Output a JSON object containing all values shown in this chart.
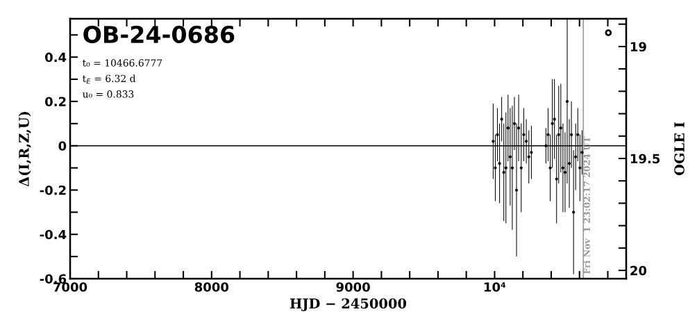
{
  "chart_data": {
    "type": "scatter",
    "title": "OB-24-0686",
    "xlabel": "HJD − 2450000",
    "ylabel": "Δ(I,R,Z,U)",
    "y2label": "OGLE I",
    "annotations": [
      "t₀ = 10466.6777",
      "t$_{E}$ = 6.32 d",
      "u₀ = 0.833",
      {
        "text": "Fri Nov  1 23:02:17 2024 UT",
        "x": 10627,
        "y": -0.58
      }
    ],
    "xlim": [
      7000,
      10930
    ],
    "ylim": [
      -0.6,
      0.573
    ],
    "y2lim": [
      20.037,
      18.876
    ],
    "xticks": [
      7000,
      {
        "value": 7200,
        "label": null
      },
      {
        "value": 7400,
        "label": null
      },
      {
        "value": 7600,
        "label": null
      },
      {
        "value": 7800,
        "label": null
      },
      8000,
      {
        "value": 8200,
        "label": null
      },
      {
        "value": 8400,
        "label": null
      },
      {
        "value": 8600,
        "label": null
      },
      {
        "value": 8800,
        "label": null
      },
      9000,
      {
        "value": 9200,
        "label": null
      },
      {
        "value": 9400,
        "label": null
      },
      {
        "value": 9600,
        "label": null
      },
      {
        "value": 9800,
        "label": null
      },
      {
        "value": 10000,
        "label": "10⁴"
      },
      {
        "value": 10200,
        "label": null
      },
      {
        "value": 10400,
        "label": null
      },
      {
        "value": 10600,
        "label": null
      },
      {
        "value": 10800,
        "label": null
      }
    ],
    "yticks": [
      -0.6,
      {
        "value": -0.5,
        "label": null
      },
      -0.4,
      {
        "value": -0.3,
        "label": null
      },
      -0.2,
      {
        "value": -0.1,
        "label": null
      },
      0,
      {
        "value": 0.1,
        "label": null
      },
      0.2,
      {
        "value": 0.3,
        "label": null
      },
      0.4,
      {
        "value": 0.5,
        "label": null
      }
    ],
    "y2ticks": [
      {
        "value": 18.9,
        "label": null
      },
      19,
      {
        "value": 19.1,
        "label": null
      },
      {
        "value": 19.2,
        "label": null
      },
      {
        "value": 19.3,
        "label": null
      },
      {
        "value": 19.4,
        "label": null
      },
      19.5,
      {
        "value": 19.6,
        "label": null
      },
      {
        "value": 19.7,
        "label": null
      },
      {
        "value": 19.8,
        "label": null
      },
      {
        "value": 19.9,
        "label": null
      },
      20
    ],
    "grid": false,
    "ref_lines": [
      {
        "axis": "y",
        "value": 0,
        "color": "#000000"
      },
      {
        "axis": "x",
        "value": 10627,
        "color": "#999999"
      }
    ],
    "series": [
      {
        "color": "#000000",
        "marker": "circle",
        "x": [
          9990,
          10005,
          10020,
          10035,
          10050,
          10065,
          10080,
          10095,
          10110,
          10125,
          10140,
          10155,
          10170,
          10188,
          10206,
          10224,
          10242,
          10260,
          10363,
          10378,
          10393,
          10408,
          10423,
          10438,
          10453,
          10468,
          10483,
          10498,
          10513,
          10528,
          10543,
          10558,
          10573,
          10588,
          10603,
          10618
        ],
        "values": [
          0.02,
          -0.1,
          0.05,
          -0.08,
          0.12,
          -0.12,
          -0.1,
          0.08,
          -0.05,
          -0.1,
          0.1,
          -0.2,
          0.08,
          -0.1,
          0.05,
          0.02,
          -0.05,
          -0.03,
          0.0,
          0.05,
          -0.1,
          0.1,
          0.12,
          -0.15,
          0.05,
          0.08,
          -0.1,
          -0.12,
          0.2,
          -0.08,
          0.05,
          -0.3,
          -0.05,
          0.05,
          -0.1,
          -0.03
        ],
        "errors": [
          0.17,
          0.15,
          0.12,
          0.18,
          0.1,
          0.22,
          0.25,
          0.15,
          0.22,
          0.28,
          0.12,
          0.3,
          0.15,
          0.2,
          0.12,
          0.1,
          0.12,
          0.12,
          0.08,
          0.12,
          0.15,
          0.2,
          0.18,
          0.2,
          0.22,
          0.2,
          0.2,
          0.18,
          0.37,
          0.2,
          0.15,
          0.28,
          0.15,
          0.12,
          0.15,
          0.1
        ]
      },
      {
        "color": "#000000",
        "marker": "circle",
        "x": [
          10804
        ],
        "values": [
          0.51
        ]
      }
    ]
  }
}
